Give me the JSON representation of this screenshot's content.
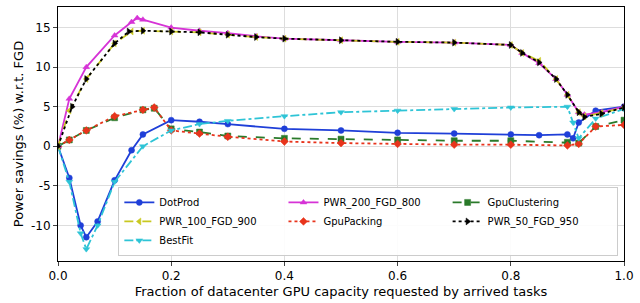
{
  "chart_data": {
    "type": "line",
    "x_label": "Fraction of datacenter GPU capacity requested by arrived tasks",
    "y_label": "Power savings (%) w.r.t. FGD",
    "xlim": [
      0,
      1
    ],
    "ylim": [
      -14.5,
      17.6
    ],
    "xticks": [
      {
        "value": 0,
        "label": "0.0"
      },
      0.2,
      0.4,
      0.6,
      0.8,
      {
        "value": 1,
        "label": "1.0"
      }
    ],
    "yticks": [
      -10,
      -5,
      0,
      5,
      10,
      15
    ],
    "grid": true,
    "legend": "lower right",
    "series": [
      {
        "name": "DotProd",
        "color": "#1f3fd8",
        "line_style": "solid",
        "marker": "circle",
        "x": [
          0,
          0.02,
          0.04,
          0.05,
          0.07,
          0.1,
          0.13,
          0.15,
          0.2,
          0.25,
          0.3,
          0.4,
          0.5,
          0.6,
          0.7,
          0.8,
          0.85,
          0.9,
          0.91,
          0.92,
          0.95,
          1.0
        ],
        "values": [
          0,
          -4,
          -10,
          -11.5,
          -9.5,
          -4.3,
          -0.5,
          1.5,
          3.3,
          3.1,
          2.8,
          2.2,
          2.0,
          1.7,
          1.6,
          1.5,
          1.4,
          1.5,
          1.0,
          3.0,
          4.5,
          5.0
        ]
      },
      {
        "name": "GpuClustering",
        "color": "#2a7a2a",
        "line_style": "dashed",
        "marker": "square",
        "x": [
          0,
          0.02,
          0.05,
          0.1,
          0.15,
          0.17,
          0.2,
          0.25,
          0.3,
          0.4,
          0.5,
          0.6,
          0.7,
          0.8,
          0.9,
          0.92,
          0.95,
          1.0
        ],
        "values": [
          0,
          0.8,
          2,
          3.6,
          4.6,
          4.8,
          2.2,
          1.8,
          1.3,
          1.0,
          0.9,
          0.8,
          0.7,
          0.7,
          0.5,
          0.4,
          2.5,
          3.3
        ]
      },
      {
        "name": "GpuPacking",
        "color": "#e8341c",
        "line_style": "dotted",
        "marker": "diamond",
        "x": [
          0,
          0.02,
          0.05,
          0.1,
          0.15,
          0.17,
          0.2,
          0.25,
          0.3,
          0.4,
          0.5,
          0.6,
          0.7,
          0.8,
          0.9,
          0.92,
          0.95,
          1.0
        ],
        "values": [
          0,
          0.8,
          2,
          3.8,
          4.6,
          4.9,
          2.0,
          1.6,
          1.2,
          0.6,
          0.4,
          0.3,
          0.2,
          0.2,
          0.1,
          0.3,
          2.5,
          2.7
        ]
      },
      {
        "name": "BestFit",
        "color": "#2ec4d6",
        "line_style": "dashdot",
        "marker": "triangle-down",
        "x": [
          0,
          0.02,
          0.04,
          0.05,
          0.07,
          0.1,
          0.15,
          0.2,
          0.25,
          0.3,
          0.4,
          0.5,
          0.6,
          0.7,
          0.8,
          0.9,
          0.91,
          0.92,
          0.95,
          1.0
        ],
        "values": [
          0,
          -4.5,
          -11,
          -13,
          -10,
          -4.5,
          0,
          2.0,
          2.8,
          3.2,
          3.8,
          4.3,
          4.5,
          4.7,
          4.9,
          5.0,
          3.0,
          1.0,
          3.5,
          4.7
        ]
      },
      {
        "name": "PWR_200_FGD_800",
        "color": "#d633d6",
        "line_style": "solid",
        "marker": "triangle-up",
        "x": [
          0,
          0.02,
          0.05,
          0.1,
          0.13,
          0.14,
          0.15,
          0.2,
          0.25,
          0.3,
          0.35,
          0.4,
          0.5,
          0.6,
          0.7,
          0.8,
          0.82,
          0.85,
          0.88,
          0.9,
          0.92,
          0.93,
          0.96,
          1.0
        ],
        "values": [
          0,
          6,
          10,
          14,
          15.7,
          16.2,
          16,
          15,
          14.6,
          14.3,
          13.9,
          13.6,
          13.4,
          13.2,
          13.1,
          12.8,
          11.8,
          10.5,
          8.5,
          6.5,
          4.3,
          4.0,
          4.3,
          5.0
        ]
      },
      {
        "name": "PWR_100_FGD_900",
        "color": "#c8c820",
        "line_style": "dashed",
        "marker": "triangle-left",
        "x": [
          0,
          0.02,
          0.05,
          0.1,
          0.13,
          0.15,
          0.2,
          0.25,
          0.3,
          0.35,
          0.4,
          0.5,
          0.6,
          0.7,
          0.8,
          0.82,
          0.85,
          0.88,
          0.9,
          0.92,
          0.93,
          0.96,
          1.0
        ],
        "values": [
          0,
          4.5,
          8.5,
          13,
          14.5,
          14.6,
          14.5,
          14.4,
          14.1,
          13.8,
          13.6,
          13.4,
          13.2,
          13.1,
          12.8,
          11.8,
          10.8,
          8.5,
          6.5,
          4.3,
          3.8,
          4.2,
          4.9
        ]
      },
      {
        "name": "PWR_50_FGD_950",
        "color": "#000000",
        "line_style": "dotted",
        "marker": "triangle-right",
        "x": [
          0,
          0.025,
          0.05,
          0.1,
          0.125,
          0.15,
          0.2,
          0.25,
          0.3,
          0.35,
          0.4,
          0.5,
          0.6,
          0.7,
          0.8,
          0.82,
          0.85,
          0.88,
          0.9,
          0.92,
          0.93,
          0.96,
          1.0
        ],
        "values": [
          0,
          5.0,
          8.5,
          13,
          14.5,
          14.6,
          14.5,
          14.4,
          14.1,
          13.8,
          13.6,
          13.4,
          13.2,
          13.1,
          12.8,
          11.8,
          10.6,
          8.5,
          6.5,
          4.3,
          3.7,
          4.1,
          4.9
        ]
      }
    ]
  }
}
